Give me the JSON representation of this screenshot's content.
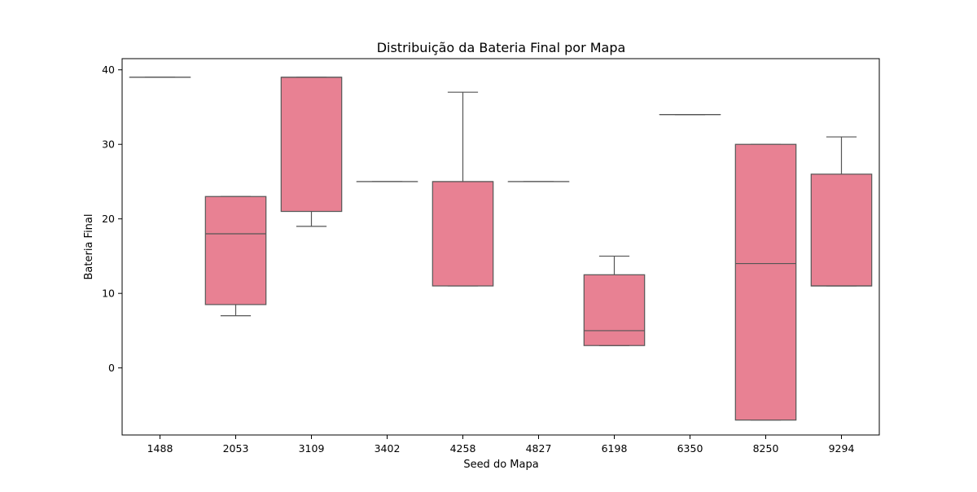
{
  "chart_data": {
    "type": "box",
    "title": "Distribuição da Bateria Final por Mapa",
    "xlabel": "Seed do Mapa",
    "ylabel": "Bateria Final",
    "ylim": [
      -9,
      41.5
    ],
    "yticks": [
      0,
      10,
      20,
      30,
      40
    ],
    "grid": false,
    "colors": {
      "box_fill": "#e88193",
      "line": "#555555",
      "axis": "#000000"
    },
    "categories": [
      "1488",
      "2053",
      "3109",
      "3402",
      "4258",
      "4827",
      "6198",
      "6350",
      "8250",
      "9294"
    ],
    "boxes": [
      {
        "category": "1488",
        "whisker_low": 39,
        "q1": 39,
        "median": 39,
        "q3": 39,
        "whisker_high": 39
      },
      {
        "category": "2053",
        "whisker_low": 7,
        "q1": 8.5,
        "median": 18,
        "q3": 23,
        "whisker_high": 23
      },
      {
        "category": "3109",
        "whisker_low": 19,
        "q1": 21,
        "median": 39,
        "q3": 39,
        "whisker_high": 39
      },
      {
        "category": "3402",
        "whisker_low": 25,
        "q1": 25,
        "median": 25,
        "q3": 25,
        "whisker_high": 25
      },
      {
        "category": "4258",
        "whisker_low": 11,
        "q1": 11,
        "median": 25,
        "q3": 25,
        "whisker_high": 37
      },
      {
        "category": "4827",
        "whisker_low": 25,
        "q1": 25,
        "median": 25,
        "q3": 25,
        "whisker_high": 25
      },
      {
        "category": "6198",
        "whisker_low": 3,
        "q1": 3,
        "median": 5,
        "q3": 12.5,
        "whisker_high": 15
      },
      {
        "category": "6350",
        "whisker_low": 34,
        "q1": 34,
        "median": 34,
        "q3": 34,
        "whisker_high": 34
      },
      {
        "category": "8250",
        "whisker_low": -7,
        "q1": -7,
        "median": 14,
        "q3": 30,
        "whisker_high": 30
      },
      {
        "category": "9294",
        "whisker_low": 11,
        "q1": 11,
        "median": 11,
        "q3": 26,
        "whisker_high": 31
      }
    ]
  }
}
